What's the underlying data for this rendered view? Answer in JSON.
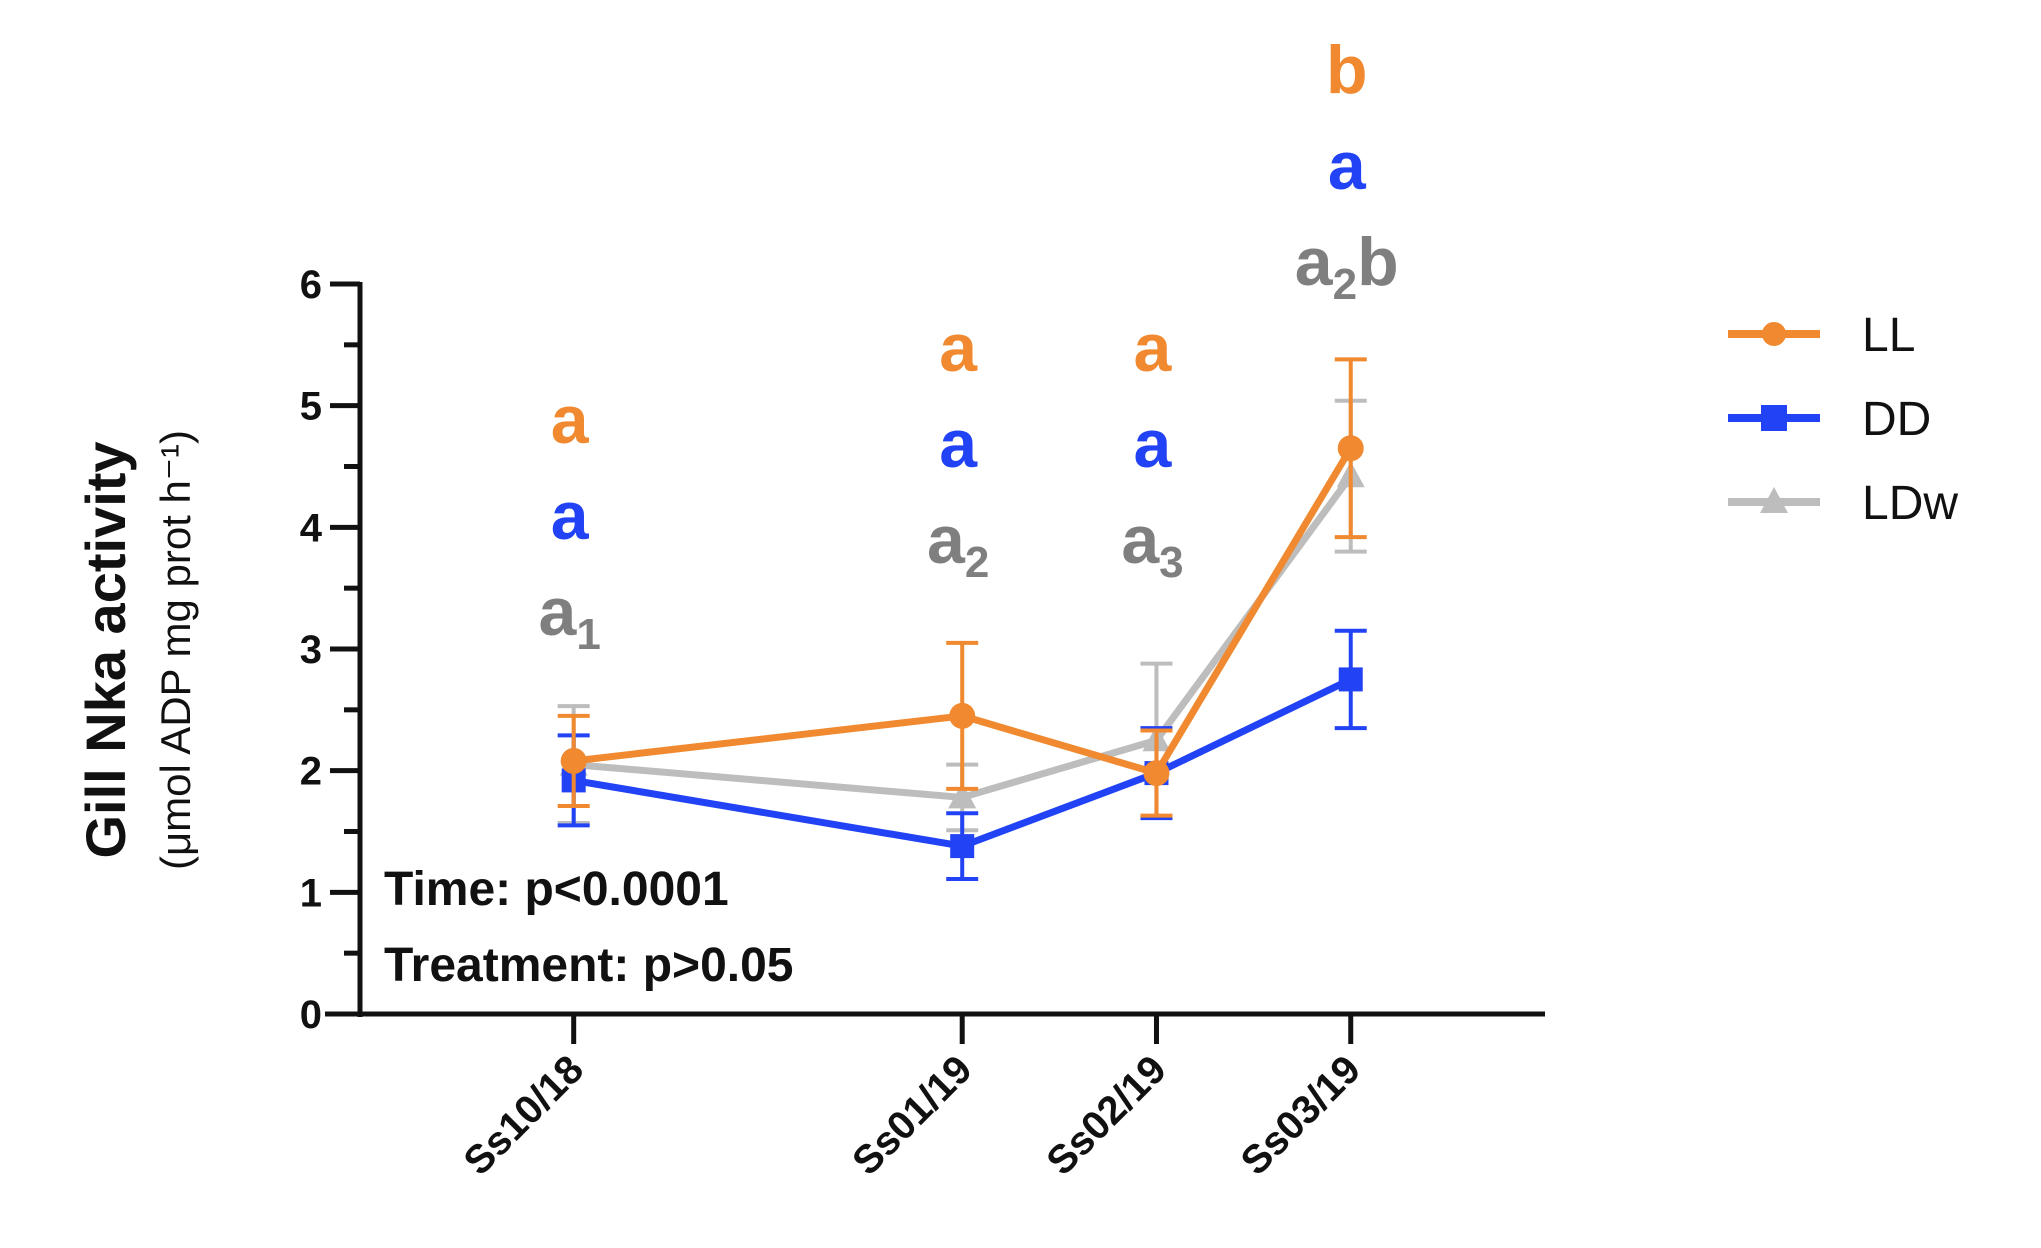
{
  "chart_data": {
    "type": "line",
    "ylabel": "Gill Nka activity",
    "ylabel_unit": "(μmol ADP mg prot h⁻¹)",
    "ylim": [
      0,
      6
    ],
    "yticks": [
      "0",
      "1",
      "2",
      "3",
      "4",
      "5",
      "6"
    ],
    "categories": [
      "Ss10/18",
      "Ss01/19",
      "Ss02/19",
      "Ss03/19"
    ],
    "x_positions": [
      0,
      4,
      6,
      8
    ],
    "xlim": [
      -2.2,
      10
    ],
    "series": [
      {
        "name": "LL",
        "color": "#F0892F",
        "marker": "circle",
        "values": [
          2.08,
          2.45,
          1.98,
          4.65
        ],
        "errors": [
          0.37,
          0.6,
          0.35,
          0.73
        ]
      },
      {
        "name": "DD",
        "color": "#2243F5",
        "marker": "square",
        "values": [
          1.92,
          1.38,
          1.98,
          2.75
        ],
        "errors": [
          0.37,
          0.27,
          0.37,
          0.4
        ]
      },
      {
        "name": "LDw",
        "color": "#BDBDBD",
        "marker": "triangle",
        "values": [
          2.05,
          1.78,
          2.25,
          4.42
        ],
        "errors": [
          0.48,
          0.27,
          0.63,
          0.62
        ]
      }
    ],
    "annotations": {
      "stats": [
        "Time: p<0.0001",
        "Treatment: p>0.05"
      ],
      "letters": [
        [
          {
            "text": "a",
            "sub": ""
          },
          {
            "text": "a",
            "sub": ""
          },
          {
            "text": "a",
            "sub": "1"
          }
        ],
        [
          {
            "text": "a",
            "sub": ""
          },
          {
            "text": "a",
            "sub": ""
          },
          {
            "text": "a",
            "sub": "2"
          }
        ],
        [
          {
            "text": "a",
            "sub": ""
          },
          {
            "text": "a",
            "sub": ""
          },
          {
            "text": "a",
            "sub": "3"
          }
        ],
        [
          {
            "text": "b",
            "sub": ""
          },
          {
            "text": "a",
            "sub": ""
          },
          {
            "text": "a",
            "sub": "2",
            "tail": "b"
          }
        ]
      ],
      "letter_colors": [
        "#F0892F",
        "#2243F5",
        "#7F7F7F"
      ]
    },
    "legend_position": "right"
  }
}
